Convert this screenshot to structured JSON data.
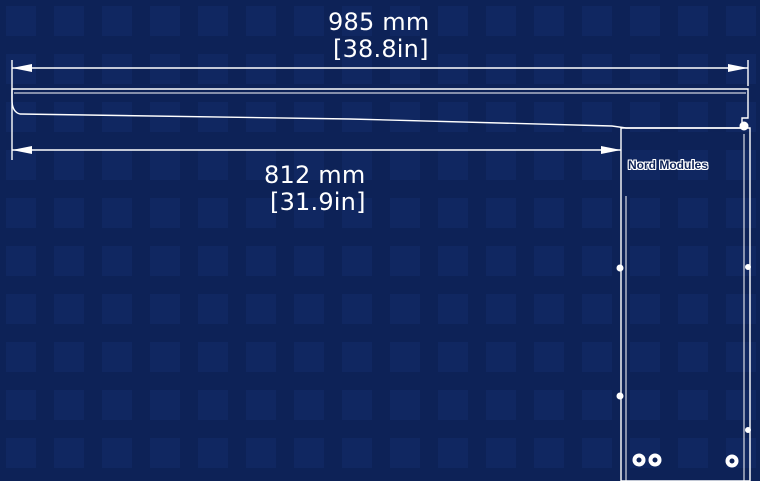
{
  "colors": {
    "background": "#0d2257",
    "line": "#ffffff"
  },
  "dimensions": {
    "overall": {
      "mm": "985 mm",
      "inches": "[38.8in]"
    },
    "reach": {
      "mm": "812 mm",
      "inches": "[31.9in]"
    }
  },
  "product": {
    "brand_label": "Nord Modules"
  }
}
